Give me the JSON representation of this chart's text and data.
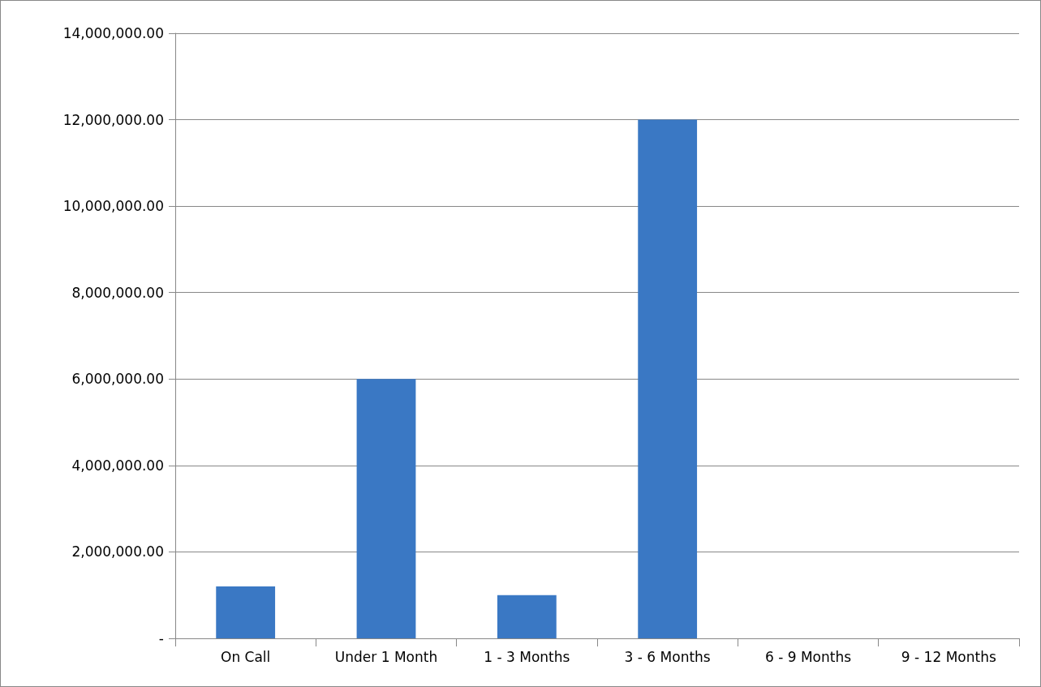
{
  "chart_data": {
    "type": "bar",
    "categories": [
      "On Call",
      "Under 1 Month",
      "1 - 3 Months",
      "3 - 6 Months",
      "6 - 9 Months",
      "9 - 12 Months"
    ],
    "values": [
      1200000,
      6000000,
      1000000,
      12000000,
      0,
      0
    ],
    "color": "#3a78c4",
    "ylim": [
      0,
      14000000
    ],
    "yticks": [
      {
        "value": 0,
        "label": "-"
      },
      {
        "value": 2000000,
        "label": "2,000,000.00"
      },
      {
        "value": 4000000,
        "label": "4,000,000.00"
      },
      {
        "value": 6000000,
        "label": "6,000,000.00"
      },
      {
        "value": 8000000,
        "label": "8,000,000.00"
      },
      {
        "value": 10000000,
        "label": "10,000,000.00"
      },
      {
        "value": 12000000,
        "label": "12,000,000.00"
      },
      {
        "value": 14000000,
        "label": "14,000,000.00"
      }
    ],
    "grid": "y"
  }
}
